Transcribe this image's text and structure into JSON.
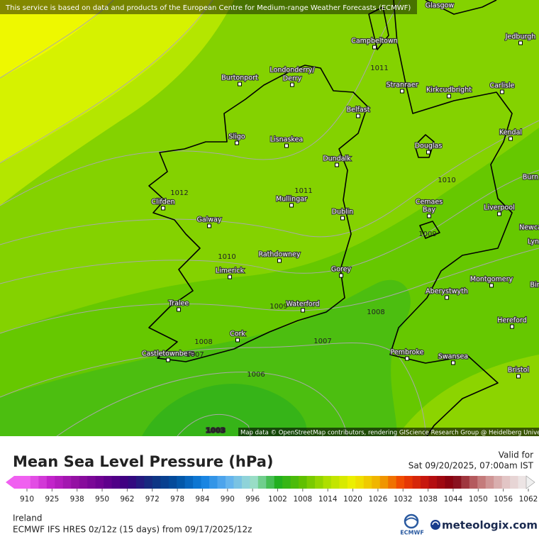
{
  "map": {
    "attribution_top": "This service is based on data and products of the European Centre for Medium-range Weather Forecasts (ECMWF)",
    "attribution_bottom": "Map data © OpenStreetMap contributors, rendering GIScience Research Group @ Heidelberg University",
    "places": [
      "Glasgow",
      "Campbeltown",
      "Jedburgh",
      "Londonderry/",
      "Derry",
      "Burtonport",
      "Stranraer",
      "Kirkcudbright",
      "Carlisle",
      "Belfast",
      "Sligo",
      "Lisnaskea",
      "Kendal",
      "Douglas",
      "Dundalk",
      "Burn",
      "Mullingar",
      "Clifden",
      "Dublin",
      "Cemaes",
      "Bay",
      "Liverpool",
      "Galway",
      "Newca",
      "Lyn",
      "Rathdowney",
      "Limerick",
      "Gorey",
      "Montgomery",
      "Aberystwyth",
      "Bir",
      "Tralee",
      "Waterford",
      "Hereford",
      "Cork",
      "Pembroke",
      "Swansea",
      "Castletownbere",
      "Bristol"
    ],
    "isobar_labels": [
      1011,
      1011,
      1012,
      1010,
      1009,
      1010,
      1009,
      1008,
      1008,
      1007,
      1007,
      1006,
      1003
    ]
  },
  "legend": {
    "title": "Mean Sea Level Pressure (hPa)",
    "valid_label": "Valid for",
    "valid_time": "Sat 09/20/2025, 07:00am IST",
    "ticks": [
      910,
      925,
      938,
      950,
      962,
      972,
      978,
      984,
      990,
      996,
      1002,
      1008,
      1014,
      1020,
      1026,
      1032,
      1038,
      1044,
      1050,
      1056,
      1062
    ],
    "region": "Ireland",
    "model": "ECMWF IFS HRES 0z/12z (15 days) from 09/17/2025/12z",
    "ecmwf": "ECMWF",
    "brand": "meteologix.com"
  }
}
